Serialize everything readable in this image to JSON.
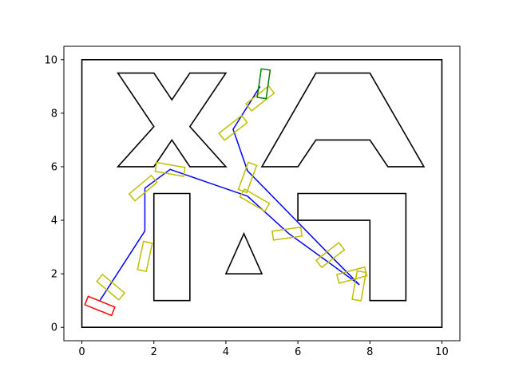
{
  "chart_data": {
    "type": "line",
    "title": "",
    "xlabel": "",
    "ylabel": "",
    "xlim": [
      -0.5,
      10.5
    ],
    "ylim": [
      -0.5,
      10.5
    ],
    "x_ticks": [
      0,
      2,
      4,
      6,
      8,
      10
    ],
    "y_ticks": [
      0,
      2,
      4,
      6,
      8,
      10
    ],
    "x_tick_labels": [
      "0",
      "2",
      "4",
      "6",
      "8",
      "10"
    ],
    "y_tick_labels": [
      "0",
      "2",
      "4",
      "6",
      "8",
      "10"
    ],
    "grid": false,
    "colors": {
      "obstacle": "#000000",
      "path": "#0000ff",
      "intermediate_pose": "#bfbf00",
      "start_pose": "#ff0000",
      "goal_pose": "#008000"
    },
    "obstacles": [
      {
        "name": "boundary",
        "points": [
          [
            0,
            0
          ],
          [
            10,
            0
          ],
          [
            10,
            10
          ],
          [
            0,
            10
          ]
        ]
      },
      {
        "name": "letter-x",
        "points": [
          [
            1,
            9.5
          ],
          [
            2,
            9.5
          ],
          [
            2.5,
            8.5
          ],
          [
            3,
            9.5
          ],
          [
            4,
            9.5
          ],
          [
            3,
            7.5
          ],
          [
            4,
            6
          ],
          [
            3,
            6
          ],
          [
            2.5,
            7
          ],
          [
            2,
            6
          ],
          [
            1,
            6
          ],
          [
            2,
            7.5
          ]
        ]
      },
      {
        "name": "letter-a",
        "points": [
          [
            5,
            6
          ],
          [
            6.5,
            9.5
          ],
          [
            8,
            9.5
          ],
          [
            9.5,
            6
          ],
          [
            8.5,
            6
          ],
          [
            8,
            7
          ],
          [
            6.5,
            7
          ],
          [
            6,
            6
          ]
        ]
      },
      {
        "name": "bar",
        "points": [
          [
            2,
            1
          ],
          [
            3,
            1
          ],
          [
            3,
            5
          ],
          [
            2,
            5
          ]
        ]
      },
      {
        "name": "triangle",
        "points": [
          [
            4,
            2
          ],
          [
            5,
            2
          ],
          [
            4.5,
            3.5
          ]
        ]
      },
      {
        "name": "l-shape",
        "points": [
          [
            6,
            4
          ],
          [
            6,
            5
          ],
          [
            9,
            5
          ],
          [
            9,
            1
          ],
          [
            8,
            1
          ],
          [
            8,
            4
          ]
        ]
      }
    ],
    "path": [
      [
        0.5,
        1.0
      ],
      [
        1.75,
        3.6
      ],
      [
        1.75,
        5.2
      ],
      [
        2.45,
        5.9
      ],
      [
        4.6,
        4.9
      ],
      [
        5.75,
        3.5
      ],
      [
        7.7,
        1.6
      ],
      [
        7.0,
        2.55
      ],
      [
        4.6,
        5.85
      ],
      [
        4.2,
        7.4
      ],
      [
        4.95,
        9.0
      ]
    ],
    "poses": [
      {
        "kind": "start",
        "center": [
          0.5,
          0.8
        ],
        "angle": -22
      },
      {
        "kind": "intermediate",
        "center": [
          0.8,
          1.5
        ],
        "angle": -40
      },
      {
        "kind": "intermediate",
        "center": [
          1.75,
          2.65
        ],
        "angle": 78
      },
      {
        "kind": "intermediate",
        "center": [
          1.7,
          5.2
        ],
        "angle": 40
      },
      {
        "kind": "intermediate",
        "center": [
          2.45,
          5.9
        ],
        "angle": -10
      },
      {
        "kind": "intermediate",
        "center": [
          4.6,
          5.6
        ],
        "angle": 70
      },
      {
        "kind": "intermediate",
        "center": [
          4.8,
          4.75
        ],
        "angle": -30
      },
      {
        "kind": "intermediate",
        "center": [
          5.7,
          3.5
        ],
        "angle": 8
      },
      {
        "kind": "intermediate",
        "center": [
          6.9,
          2.7
        ],
        "angle": 38
      },
      {
        "kind": "intermediate",
        "center": [
          7.5,
          1.95
        ],
        "angle": 15
      },
      {
        "kind": "intermediate",
        "center": [
          7.7,
          1.55
        ],
        "angle": 80
      },
      {
        "kind": "intermediate",
        "center": [
          4.2,
          7.45
        ],
        "angle": 38
      },
      {
        "kind": "intermediate",
        "center": [
          4.95,
          8.55
        ],
        "angle": 38
      },
      {
        "kind": "goal",
        "center": [
          5.05,
          9.1
        ],
        "angle": 82
      }
    ]
  }
}
